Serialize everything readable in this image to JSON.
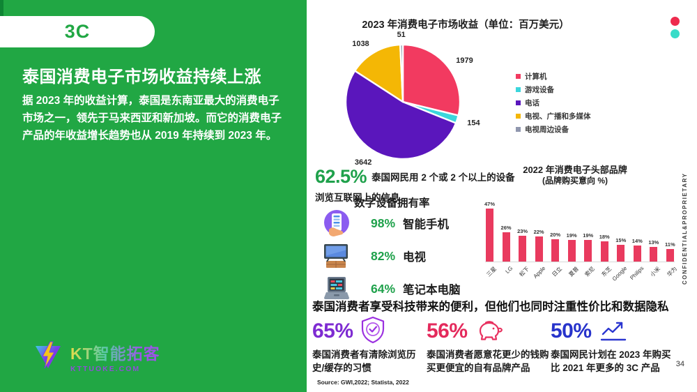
{
  "slide": {
    "badge": "3C",
    "title": "泰国消费电子市场收益持续上涨",
    "paragraph": "据 2023 年的收益计算，泰国是东南亚最大的消费电子市场之一，领先于马来西亚和新加坡。而它的消费电子产品的年收益增长趋势也从 2019 年持续到 2023 年。",
    "page_number": "34",
    "watermark": "CONFIDENTIAL&PROPRIETARY",
    "source": "Source: GWI,2022; Statista, 2022",
    "accent_green": "#21A744"
  },
  "logo": {
    "name": "KT智能拓客",
    "domain": "KTTUOKE.COM",
    "icon": "lightning-triangle-icon"
  },
  "chart_data": [
    {
      "type": "pie",
      "title": "2023 年消费电子市场收益（单位：百万美元）",
      "labels": [
        "计算机",
        "游戏设备",
        "电话",
        "电视、广播和多媒体",
        "电视周边设备"
      ],
      "values": [
        1979,
        154,
        3642,
        1038,
        51
      ],
      "colors": [
        "#F23A60",
        "#3BD6DC",
        "#5A16BC",
        "#F4B705",
        "#9097AE"
      ],
      "legend_position": "right",
      "start_angle_deg": 0,
      "direction": "clockwise"
    },
    {
      "type": "bar",
      "title": "2022 年消费电子头部品牌",
      "subtitle": "(品牌购买意向 %)",
      "categories": [
        "三星",
        "LG",
        "松下",
        "Apple",
        "日立",
        "夏普",
        "索尼",
        "东芝",
        "Google",
        "Philips",
        "小米",
        "华为"
      ],
      "values": [
        47,
        26,
        23,
        22,
        20,
        19,
        19,
        18,
        15,
        14,
        13,
        11
      ],
      "unit": "%",
      "bar_color": "#E93A5E",
      "ylim": [
        0,
        50
      ],
      "grid": false,
      "value_labels": true
    }
  ],
  "stats": {
    "internet": {
      "value": "62.5%",
      "desc": "泰国网民用 2 个或 2 个以上的设备浏览互联网上的信息",
      "color": "#1FA14B"
    },
    "ownership": {
      "heading": "数字设备拥有率",
      "items": [
        {
          "value": "98%",
          "label": "智能手机",
          "icon": "smartphone-icon"
        },
        {
          "value": "82%",
          "label": "电视",
          "icon": "tv-icon"
        },
        {
          "value": "64%",
          "label": "笔记本电脑",
          "icon": "laptop-icon"
        }
      ]
    },
    "bottom": {
      "heading": "泰国消费者享受科技带来的便利，但他们也同时注重性价比和数据隐私",
      "items": [
        {
          "value": "65%",
          "color": "#7E2BD2",
          "icon": "shield-check-icon",
          "desc": "泰国消费者有清除浏览历史/缓存的习惯"
        },
        {
          "value": "56%",
          "color": "#E42A5C",
          "icon": "piggy-bank-icon",
          "desc": "泰国消费者愿意花更少的钱购买更便宜的自有品牌产品"
        },
        {
          "value": "50%",
          "color": "#2733CB",
          "icon": "growth-chart-icon",
          "desc": "泰国网民计划在 2023 年购买比 2021 年更多的 3C 产品"
        }
      ]
    }
  }
}
